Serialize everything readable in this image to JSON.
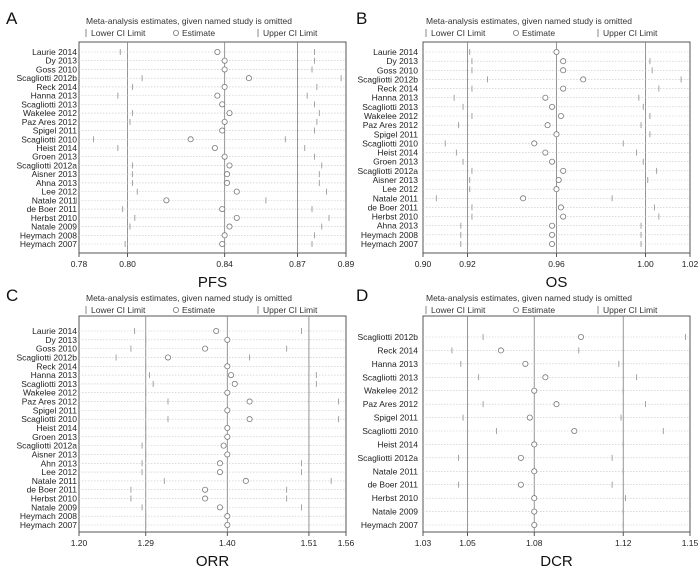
{
  "chart_data": [
    {
      "type": "scatter",
      "panel_label": "A",
      "title": "Meta-analysis estimates, given named study is omitted",
      "legend": {
        "lower": "Lower CI Limit",
        "estimate": "Estimate",
        "upper": "Upper CI Limit"
      },
      "xlabel": "PFS",
      "xlim": [
        0.78,
        0.89
      ],
      "ticks": [
        "0.78",
        "0.80",
        "0.84",
        "0.87",
        "0.89"
      ],
      "reference_lines": [
        0.8,
        0.84,
        0.87
      ],
      "studies": [
        {
          "name": "Laurie 2014",
          "lower": 0.797,
          "estimate": 0.837,
          "upper": 0.877
        },
        {
          "name": "Dy 2013",
          "lower": 0.8,
          "estimate": 0.84,
          "upper": 0.877
        },
        {
          "name": "Goss 2010",
          "lower": 0.8,
          "estimate": 0.84,
          "upper": 0.876
        },
        {
          "name": "Scagliotti 2012b",
          "lower": 0.806,
          "estimate": 0.85,
          "upper": 0.888
        },
        {
          "name": "Reck 2014",
          "lower": 0.802,
          "estimate": 0.84,
          "upper": 0.878
        },
        {
          "name": "Hanna 2013",
          "lower": 0.796,
          "estimate": 0.837,
          "upper": 0.874
        },
        {
          "name": "Scagliotti 2013",
          "lower": 0.8,
          "estimate": 0.839,
          "upper": 0.877
        },
        {
          "name": "Wakelee 2012",
          "lower": 0.802,
          "estimate": 0.842,
          "upper": 0.879
        },
        {
          "name": "Paz Ares 2012",
          "lower": 0.801,
          "estimate": 0.84,
          "upper": 0.878
        },
        {
          "name": "Spigel 2011",
          "lower": 0.8,
          "estimate": 0.839,
          "upper": 0.877
        },
        {
          "name": "Scagliotti 2010",
          "lower": 0.786,
          "estimate": 0.826,
          "upper": 0.865
        },
        {
          "name": "Heist 2014",
          "lower": 0.796,
          "estimate": 0.836,
          "upper": 0.873
        },
        {
          "name": "Groen 2013",
          "lower": 0.8,
          "estimate": 0.84,
          "upper": 0.877
        },
        {
          "name": "Scagliotti 2012a",
          "lower": 0.802,
          "estimate": 0.842,
          "upper": 0.88
        },
        {
          "name": "Aisner 2013",
          "lower": 0.802,
          "estimate": 0.841,
          "upper": 0.879
        },
        {
          "name": "Ahna 2013",
          "lower": 0.802,
          "estimate": 0.841,
          "upper": 0.879
        },
        {
          "name": "Lee 2012",
          "lower": 0.804,
          "estimate": 0.845,
          "upper": 0.882
        },
        {
          "name": "Natale 2011",
          "lower": 0.779,
          "estimate": 0.816,
          "upper": 0.857
        },
        {
          "name": "de Boer 2011",
          "lower": 0.798,
          "estimate": 0.839,
          "upper": 0.876
        },
        {
          "name": "Herbst 2010",
          "lower": 0.803,
          "estimate": 0.845,
          "upper": 0.883
        },
        {
          "name": "Natale 2009",
          "lower": 0.801,
          "estimate": 0.842,
          "upper": 0.88
        },
        {
          "name": "Heymach 2008",
          "lower": 0.8,
          "estimate": 0.84,
          "upper": 0.877
        },
        {
          "name": "Heymach 2007",
          "lower": 0.799,
          "estimate": 0.839,
          "upper": 0.876
        }
      ]
    },
    {
      "type": "scatter",
      "panel_label": "B",
      "title": "Meta-analysis estimates, given named study is omitted",
      "legend": {
        "lower": "Lower CI Limit",
        "estimate": "Estimate",
        "upper": "Upper CI Limit"
      },
      "xlabel": "OS",
      "xlim": [
        0.9,
        1.02
      ],
      "ticks": [
        "0.90",
        "0.92",
        "0.96",
        "1.00",
        "1.02"
      ],
      "reference_lines": [
        0.92,
        0.96,
        1.0
      ],
      "studies": [
        {
          "name": "Laurie 2014",
          "lower": 0.921,
          "estimate": 0.96,
          "upper": 1.0
        },
        {
          "name": "Dy 2013",
          "lower": 0.922,
          "estimate": 0.963,
          "upper": 1.002
        },
        {
          "name": "Goss 2010",
          "lower": 0.922,
          "estimate": 0.963,
          "upper": 1.003
        },
        {
          "name": "Scagliotti 2012b",
          "lower": 0.929,
          "estimate": 0.972,
          "upper": 1.016
        },
        {
          "name": "Reck 2014",
          "lower": 0.922,
          "estimate": 0.963,
          "upper": 1.006
        },
        {
          "name": "Hanna 2013",
          "lower": 0.914,
          "estimate": 0.955,
          "upper": 0.997
        },
        {
          "name": "Scagliotti 2013",
          "lower": 0.918,
          "estimate": 0.958,
          "upper": 0.999
        },
        {
          "name": "Wakelee 2012",
          "lower": 0.922,
          "estimate": 0.962,
          "upper": 1.002
        },
        {
          "name": "Paz Ares 2012",
          "lower": 0.916,
          "estimate": 0.956,
          "upper": 0.998
        },
        {
          "name": "Spigel 2011",
          "lower": 0.92,
          "estimate": 0.96,
          "upper": 1.002
        },
        {
          "name": "Scagliotti 2010",
          "lower": 0.91,
          "estimate": 0.95,
          "upper": 0.99
        },
        {
          "name": "Heist 2014",
          "lower": 0.915,
          "estimate": 0.955,
          "upper": 0.996
        },
        {
          "name": "Groen 2013",
          "lower": 0.918,
          "estimate": 0.958,
          "upper": 0.999
        },
        {
          "name": "Scagliotti 2012a",
          "lower": 0.922,
          "estimate": 0.963,
          "upper": 1.005
        },
        {
          "name": "Aisner 2013",
          "lower": 0.921,
          "estimate": 0.961,
          "upper": 1.001
        },
        {
          "name": "Lee 2012",
          "lower": 0.921,
          "estimate": 0.96,
          "upper": 1.0
        },
        {
          "name": "Natale 2011",
          "lower": 0.906,
          "estimate": 0.945,
          "upper": 0.985
        },
        {
          "name": "de Boer 2011",
          "lower": 0.922,
          "estimate": 0.962,
          "upper": 1.004
        },
        {
          "name": "Herbst 2010",
          "lower": 0.922,
          "estimate": 0.963,
          "upper": 1.006
        },
        {
          "name": "Ahna 2013",
          "lower": 0.917,
          "estimate": 0.958,
          "upper": 0.998
        },
        {
          "name": "Heymach 2008",
          "lower": 0.917,
          "estimate": 0.958,
          "upper": 0.998
        },
        {
          "name": "Heymach 2007",
          "lower": 0.917,
          "estimate": 0.958,
          "upper": 0.998
        }
      ]
    },
    {
      "type": "scatter",
      "panel_label": "C",
      "title": "Meta-analysis estimates, given named study is omitted",
      "legend": {
        "lower": "Lower CI Limit",
        "estimate": "Estimate",
        "upper": "Upper CI Limit"
      },
      "xlabel": "ORR",
      "xlim": [
        1.2,
        1.56
      ],
      "ticks": [
        "1.20",
        "1.29",
        "1.40",
        "1.51",
        "1.56"
      ],
      "reference_lines": [
        1.29,
        1.4,
        1.51
      ],
      "studies": [
        {
          "name": "Laurie 2014",
          "lower": 1.275,
          "estimate": 1.385,
          "upper": 1.5
        },
        {
          "name": "Dy 2013",
          "lower": 1.29,
          "estimate": 1.4,
          "upper": 1.51
        },
        {
          "name": "Goss 2010",
          "lower": 1.27,
          "estimate": 1.37,
          "upper": 1.48
        },
        {
          "name": "Scagliotti 2012b",
          "lower": 1.25,
          "estimate": 1.32,
          "upper": 1.43
        },
        {
          "name": "Reck 2014",
          "lower": 1.29,
          "estimate": 1.4,
          "upper": 1.51
        },
        {
          "name": "Hanna 2013",
          "lower": 1.295,
          "estimate": 1.405,
          "upper": 1.52
        },
        {
          "name": "Scagliotti 2013",
          "lower": 1.3,
          "estimate": 1.41,
          "upper": 1.52
        },
        {
          "name": "Wakelee 2012",
          "lower": 1.29,
          "estimate": 1.4,
          "upper": 1.51
        },
        {
          "name": "Paz Ares 2012",
          "lower": 1.32,
          "estimate": 1.43,
          "upper": 1.55
        },
        {
          "name": "Spigel 2011",
          "lower": 1.29,
          "estimate": 1.4,
          "upper": 1.51
        },
        {
          "name": "Scagliotti 2010",
          "lower": 1.32,
          "estimate": 1.43,
          "upper": 1.55
        },
        {
          "name": "Heist 2014",
          "lower": 1.29,
          "estimate": 1.4,
          "upper": 1.51
        },
        {
          "name": "Groen 2013",
          "lower": 1.29,
          "estimate": 1.4,
          "upper": 1.51
        },
        {
          "name": "Scagliotti 2012a",
          "lower": 1.285,
          "estimate": 1.395,
          "upper": 1.51
        },
        {
          "name": "Aisner 2013",
          "lower": 1.29,
          "estimate": 1.4,
          "upper": 1.51
        },
        {
          "name": "Ahn 2013",
          "lower": 1.285,
          "estimate": 1.39,
          "upper": 1.5
        },
        {
          "name": "Lee 2012",
          "lower": 1.285,
          "estimate": 1.39,
          "upper": 1.5
        },
        {
          "name": "Natale 2011",
          "lower": 1.315,
          "estimate": 1.425,
          "upper": 1.54
        },
        {
          "name": "de Boer 2011",
          "lower": 1.27,
          "estimate": 1.37,
          "upper": 1.48
        },
        {
          "name": "Herbst 2010",
          "lower": 1.27,
          "estimate": 1.37,
          "upper": 1.48
        },
        {
          "name": "Natale 2009",
          "lower": 1.285,
          "estimate": 1.39,
          "upper": 1.5
        },
        {
          "name": "Heymach 2008",
          "lower": 1.29,
          "estimate": 1.4,
          "upper": 1.51
        },
        {
          "name": "Heymach 2007",
          "lower": 1.29,
          "estimate": 1.4,
          "upper": 1.51
        }
      ]
    },
    {
      "type": "scatter",
      "panel_label": "D",
      "title": "Meta-analysis estimates, given named study is omitted",
      "legend": {
        "lower": "Lower CI Limit",
        "estimate": "Estimate",
        "upper": "Upper CI Limit"
      },
      "xlabel": "DCR",
      "xlim": [
        1.03,
        1.15
      ],
      "ticks": [
        "1.03",
        "1.05",
        "1.08",
        "1.12",
        "1.15"
      ],
      "reference_lines": [
        1.05,
        1.08,
        1.12
      ],
      "studies": [
        {
          "name": "Scagliotti 2012b",
          "lower": 1.057,
          "estimate": 1.101,
          "upper": 1.148
        },
        {
          "name": "Reck 2014",
          "lower": 1.043,
          "estimate": 1.065,
          "upper": 1.1
        },
        {
          "name": "Hanna 2013",
          "lower": 1.047,
          "estimate": 1.076,
          "upper": 1.118
        },
        {
          "name": "Scagliotti 2013",
          "lower": 1.055,
          "estimate": 1.085,
          "upper": 1.126
        },
        {
          "name": "Wakelee 2012",
          "lower": 1.05,
          "estimate": 1.08,
          "upper": 1.12
        },
        {
          "name": "Paz Ares 2012",
          "lower": 1.057,
          "estimate": 1.09,
          "upper": 1.13
        },
        {
          "name": "Spigel 2011",
          "lower": 1.048,
          "estimate": 1.078,
          "upper": 1.119
        },
        {
          "name": "Scagliotti 2010",
          "lower": 1.063,
          "estimate": 1.098,
          "upper": 1.138
        },
        {
          "name": "Heist 2014",
          "lower": 1.05,
          "estimate": 1.08,
          "upper": 1.12
        },
        {
          "name": "Scagliotti 2012a",
          "lower": 1.046,
          "estimate": 1.074,
          "upper": 1.115
        },
        {
          "name": "Natale 2011",
          "lower": 1.05,
          "estimate": 1.08,
          "upper": 1.12
        },
        {
          "name": "de Boer 2011",
          "lower": 1.046,
          "estimate": 1.074,
          "upper": 1.115
        },
        {
          "name": "Herbst 2010",
          "lower": 1.05,
          "estimate": 1.08,
          "upper": 1.121
        },
        {
          "name": "Natale 2009",
          "lower": 1.05,
          "estimate": 1.08,
          "upper": 1.12
        },
        {
          "name": "Heymach 2007",
          "lower": 1.05,
          "estimate": 1.08,
          "upper": 1.12
        }
      ]
    }
  ]
}
